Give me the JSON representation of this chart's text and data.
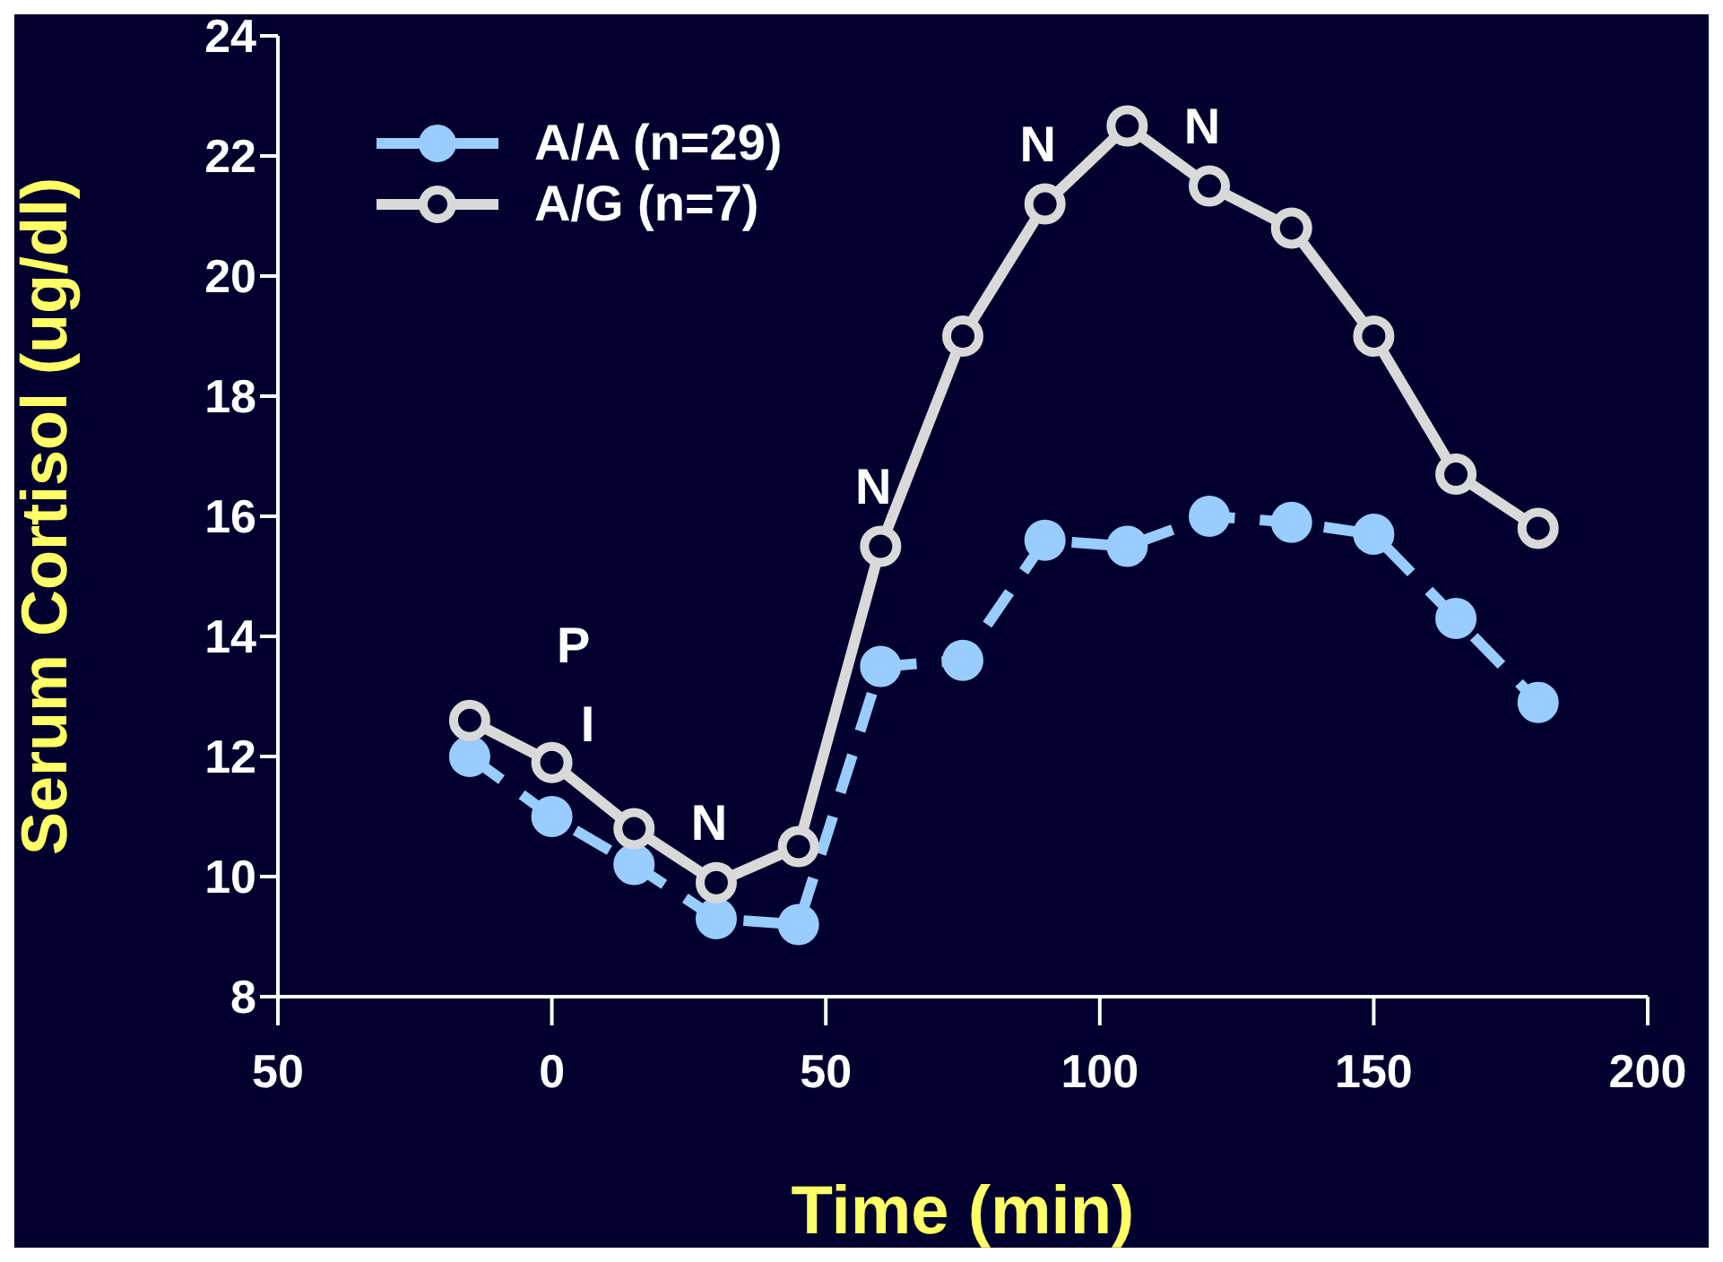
{
  "chart_data": {
    "type": "line",
    "xlabel": "Time (min)",
    "ylabel": "Serum Cortisol (ug/dl)",
    "x": [
      -15,
      0,
      15,
      30,
      45,
      60,
      75,
      90,
      105,
      120,
      135,
      150,
      165,
      180
    ],
    "series": [
      {
        "name": "A/A (n=29)",
        "color": "#99ccff",
        "line_style": "dashed",
        "values": [
          12.0,
          11.0,
          10.2,
          9.3,
          9.2,
          13.5,
          13.6,
          15.6,
          15.5,
          16.0,
          15.9,
          15.7,
          14.3,
          12.9
        ]
      },
      {
        "name": "A/G (n=7)",
        "color": "#d9d9d9",
        "line_style": "solid",
        "values": [
          12.6,
          11.9,
          10.8,
          9.9,
          10.5,
          15.5,
          19.0,
          21.2,
          22.5,
          21.5,
          20.8,
          19.0,
          16.7,
          15.8
        ]
      }
    ],
    "xlim": [
      -50,
      200
    ],
    "xticks": [
      {
        "value": -50,
        "label": "50"
      },
      0,
      50,
      100,
      150,
      200
    ],
    "ylim": [
      8,
      24
    ],
    "yticks": [
      8,
      10,
      12,
      14,
      16,
      18,
      20,
      22,
      24
    ],
    "grid": false,
    "legend": "top left",
    "marker": "circle",
    "annotations": [
      {
        "text": "P",
        "x": 0,
        "y": 11.9
      },
      {
        "text": "I",
        "x": 0,
        "y": 11.9
      },
      {
        "text": "N",
        "x": 30,
        "y": 9.9
      },
      {
        "text": "N",
        "x": 60,
        "y": 15.5
      },
      {
        "text": "N",
        "x": 90,
        "y": 21.2
      },
      {
        "text": "N",
        "x": 120,
        "y": 21.5
      }
    ]
  }
}
